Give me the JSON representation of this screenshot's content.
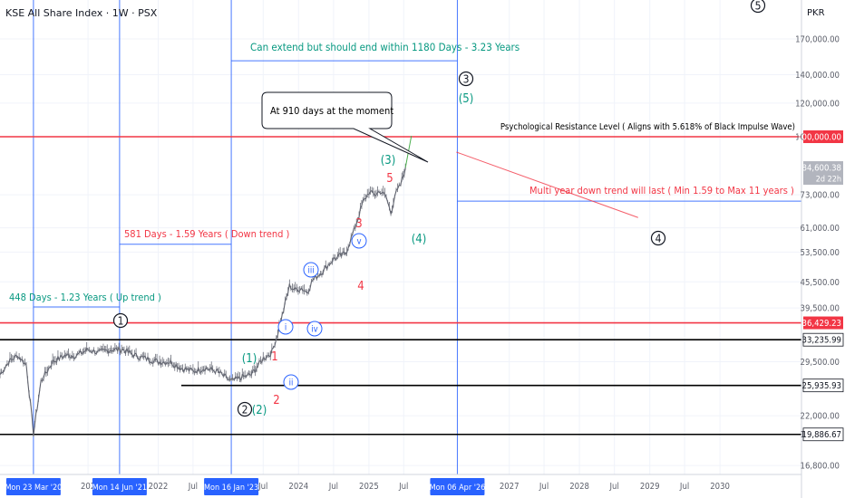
{
  "header": {
    "title": "KSE All Share Index · 1W · PSX",
    "currency": "PKR"
  },
  "chart_data": {
    "type": "line",
    "ylabel": "PKR",
    "y_scale": "log",
    "ylim": [
      16000,
      210000
    ],
    "xlim": [
      "2019-10-01",
      "2031-03-01"
    ],
    "y_ticks": [
      "170,000.00",
      "140,000.00",
      "120,000.00",
      "100,000.00",
      "73,000.00",
      "61,000.00",
      "53,500.00",
      "45,500.00",
      "39,500.00",
      "29,500.00",
      "22,000.00",
      "19,886.67",
      "16,800.00"
    ],
    "price_tags": [
      {
        "value": 100000,
        "label": "100,000.00",
        "color": "#f23645"
      },
      {
        "value": 84600.38,
        "label": "84,600.38",
        "sub": "2d 22h",
        "color": "#b2b5be"
      },
      {
        "value": 36429.23,
        "label": "36,429.23",
        "color": "#f23645"
      },
      {
        "value": 33235.99,
        "label": "33,235.99",
        "color": "#ffffff"
      },
      {
        "value": 25935.93,
        "label": "25,935.93",
        "color": "#ffffff"
      },
      {
        "value": 19886.67,
        "label": "19,886.67",
        "color": "#ffffff"
      }
    ],
    "x_ticks": [
      {
        "date": "2021-01-01",
        "label": "202"
      },
      {
        "date": "2022-01-01",
        "label": "2022"
      },
      {
        "date": "2022-07-01",
        "label": "Jul"
      },
      {
        "date": "2023-07-01",
        "label": "Jul"
      },
      {
        "date": "2024-01-01",
        "label": "2024"
      },
      {
        "date": "2024-07-01",
        "label": "Jul"
      },
      {
        "date": "2025-01-01",
        "label": "2025"
      },
      {
        "date": "2025-07-01",
        "label": "Jul"
      },
      {
        "date": "2027-01-01",
        "label": "2027"
      },
      {
        "date": "2027-07-01",
        "label": "Jul"
      },
      {
        "date": "2028-01-01",
        "label": "2028"
      },
      {
        "date": "2028-07-01",
        "label": "Jul"
      },
      {
        "date": "2029-01-01",
        "label": "2029"
      },
      {
        "date": "2029-07-01",
        "label": "Jul"
      },
      {
        "date": "2030-01-01",
        "label": "2030"
      }
    ],
    "date_tags": [
      {
        "date": "2020-03-23",
        "label": "Mon 23 Mar '20"
      },
      {
        "date": "2021-06-14",
        "label": "Mon 14 Jun '21"
      },
      {
        "date": "2023-01-16",
        "label": "Mon 16 Jan '23"
      },
      {
        "date": "2026-04-06",
        "label": "Mon 06 Apr '26"
      }
    ],
    "vertical_lines": [
      "2020-03-23",
      "2021-06-14",
      "2023-01-16",
      "2026-04-06"
    ],
    "horizontal_lines": [
      {
        "value": 100000,
        "color": "#f23645",
        "from": "2019-10-01",
        "to": "2031-03-01"
      },
      {
        "value": 36429.23,
        "color": "#f23645",
        "from": "2019-10-01",
        "to": "2031-03-01"
      },
      {
        "value": 33235.99,
        "color": "#000000",
        "from": "2019-10-01",
        "to": "2031-03-01"
      },
      {
        "value": 25935.93,
        "color": "#000000",
        "from": "2022-05-01",
        "to": "2031-03-01"
      },
      {
        "value": 19886.67,
        "color": "#000000",
        "from": "2019-10-01",
        "to": "2031-03-01"
      }
    ],
    "series": [
      {
        "x": [
          "2019-10-01",
          "2019-11-15",
          "2020-01-01",
          "2020-02-15",
          "2020-03-23",
          "2020-05-01",
          "2020-07-01",
          "2020-09-01",
          "2020-11-01",
          "2021-01-01",
          "2021-03-01",
          "2021-05-01",
          "2021-07-01",
          "2021-09-01",
          "2021-11-01",
          "2022-01-01",
          "2022-03-01",
          "2022-05-01",
          "2022-07-01",
          "2022-09-01",
          "2022-11-01",
          "2023-01-16",
          "2023-03-01",
          "2023-05-01",
          "2023-07-01",
          "2023-08-15",
          "2023-09-15",
          "2023-10-15",
          "2023-11-15",
          "2023-12-15",
          "2024-01-15",
          "2024-02-15",
          "2024-03-15",
          "2024-05-01",
          "2024-07-01",
          "2024-09-01",
          "2024-10-15",
          "2024-12-01",
          "2025-01-01",
          "2025-02-01",
          "2025-03-01",
          "2025-04-01",
          "2025-04-25",
          "2025-05-15",
          "2025-06-15",
          "2025-07-10"
        ],
        "values": [
          27500,
          29500,
          30500,
          29000,
          20000,
          26500,
          29500,
          30500,
          30500,
          31500,
          31000,
          31500,
          31500,
          30500,
          30000,
          29500,
          29500,
          28500,
          28000,
          28500,
          28000,
          26500,
          27000,
          27500,
          30000,
          31000,
          34500,
          39000,
          44500,
          43500,
          44000,
          43000,
          46000,
          48000,
          51500,
          53000,
          60000,
          70000,
          74000,
          73000,
          74500,
          72000,
          66000,
          72500,
          77000,
          84600
        ]
      }
    ],
    "annotations": [
      {
        "text": "Can extend but should end within 1180 Days - 3.23 Years",
        "color": "#089981"
      },
      {
        "text": "At 910 days at the moment",
        "color": "#000000"
      },
      {
        "text": "Psychological Resistance Level ( Aligns with 5.618% of Black Impulse Wave)",
        "color": "#000000"
      },
      {
        "text": "Multi year down trend will last ( Min 1.59 to Max 11 years )",
        "color": "#f23645"
      },
      {
        "text": "581 Days - 1.59 Years ( Down trend )",
        "color": "#f23645"
      },
      {
        "text": "448 Days -  1.23 Years ( Up trend )",
        "color": "#089981"
      }
    ],
    "wave_labels": [
      {
        "text": "5",
        "style": "circle-black"
      },
      {
        "text": "3",
        "style": "circle-black"
      },
      {
        "text": "(5)",
        "style": "green"
      },
      {
        "text": "(3)",
        "style": "green"
      },
      {
        "text": "5",
        "style": "red"
      },
      {
        "text": "3",
        "style": "red"
      },
      {
        "text": "v",
        "style": "circle-blue"
      },
      {
        "text": "(4)",
        "style": "green"
      },
      {
        "text": "iii",
        "style": "circle-blue"
      },
      {
        "text": "4",
        "style": "red"
      },
      {
        "text": "1",
        "style": "circle-black"
      },
      {
        "text": "i",
        "style": "circle-blue"
      },
      {
        "text": "iv",
        "style": "circle-blue"
      },
      {
        "text": "(1)",
        "style": "green"
      },
      {
        "text": "1",
        "style": "red"
      },
      {
        "text": "ii",
        "style": "circle-blue"
      },
      {
        "text": "2",
        "style": "circle-black"
      },
      {
        "text": "(2)",
        "style": "green"
      },
      {
        "text": "2",
        "style": "red"
      },
      {
        "text": "4",
        "style": "circle-black"
      }
    ]
  }
}
